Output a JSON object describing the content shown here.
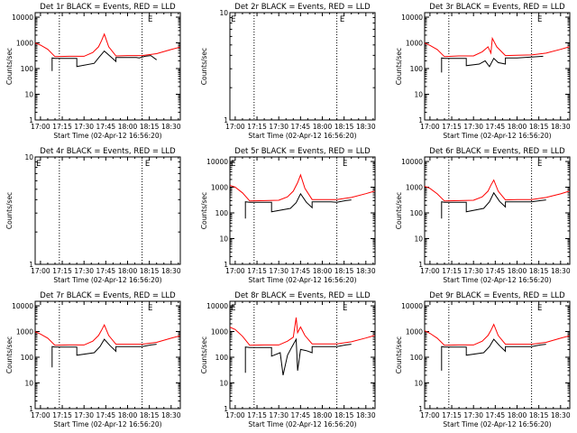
{
  "chart_data": [
    {
      "type": "line",
      "title": "Det 1r BLACK = Events, RED = LLD",
      "xlabel": "Start Time (02-Apr-12 16:56:20)",
      "ylabel": "Counts/sec",
      "x_ticklabels": [
        "17:00",
        "17:15",
        "17:30",
        "17:45",
        "18:00",
        "18:15",
        "18:30"
      ],
      "y_ticklabels": [
        "1",
        "10",
        "100",
        "1000",
        "10000"
      ],
      "xlim": [
        "16:56:20",
        "18:36:20"
      ],
      "ylim": [
        1,
        15000
      ],
      "y_scale": "log",
      "vlines": [
        "17:13",
        "18:10"
      ],
      "markers": [
        {
          "label": "E",
          "x": "18:14"
        }
      ],
      "series": [
        {
          "color": "#000000",
          "x": [
            "17:08",
            "17:08",
            "17:10",
            "17:25",
            "17:25",
            "17:37",
            "17:40",
            "17:44",
            "17:48",
            "17:52",
            "17:52",
            "18:06",
            "18:08",
            "18:12",
            "18:16",
            "18:20"
          ],
          "y": [
            80,
            260,
            250,
            250,
            120,
            160,
            260,
            480,
            300,
            190,
            270,
            270,
            260,
            300,
            320,
            220
          ]
        },
        {
          "color": "#ff0000",
          "x": [
            "16:56",
            "17:00",
            "17:05",
            "17:10",
            "17:20",
            "17:30",
            "17:36",
            "17:40",
            "17:42",
            "17:44",
            "17:47",
            "17:52",
            "18:00",
            "18:10",
            "18:20",
            "18:30",
            "18:36"
          ],
          "y": [
            1000,
            820,
            560,
            290,
            300,
            300,
            420,
            700,
            1200,
            2200,
            700,
            310,
            320,
            320,
            380,
            550,
            680
          ]
        }
      ]
    },
    {
      "type": "line",
      "title": "Det 2r BLACK = Events, RED = LLD",
      "xlabel": "Start Time (02-Apr-12 16:56:20)",
      "ylabel": "Counts/sec",
      "x_ticklabels": [
        "17:00",
        "17:15",
        "17:30",
        "17:45",
        "18:00",
        "18:15",
        "18:30"
      ],
      "y_ticklabels": [
        "1",
        "10"
      ],
      "xlim": [
        "16:56:20",
        "18:36:20"
      ],
      "ylim": [
        1,
        10
      ],
      "y_scale": "log",
      "vlines": [
        "17:13",
        "18:10"
      ],
      "markers": [
        {
          "label": "E",
          "x": "16:57"
        },
        {
          "label": "E",
          "x": "18:12"
        }
      ],
      "series": []
    },
    {
      "type": "line",
      "title": "Det 3r BLACK = Events, RED = LLD",
      "xlabel": "Start Time (02-Apr-12 16:56:20)",
      "ylabel": "Counts/sec",
      "x_ticklabels": [
        "17:00",
        "17:15",
        "17:30",
        "17:45",
        "18:00",
        "18:15",
        "18:30"
      ],
      "y_ticklabels": [
        "1",
        "10",
        "100",
        "1000",
        "10000"
      ],
      "xlim": [
        "16:56:20",
        "18:36:20"
      ],
      "ylim": [
        1,
        15000
      ],
      "y_scale": "log",
      "vlines": [
        "17:13",
        "18:10"
      ],
      "markers": [
        {
          "label": "E",
          "x": "18:14"
        }
      ],
      "series": [
        {
          "color": "#000000",
          "x": [
            "17:08",
            "17:08",
            "17:10",
            "17:25",
            "17:25",
            "17:34",
            "17:38",
            "17:41",
            "17:44",
            "17:47",
            "17:52",
            "17:52",
            "18:00",
            "18:10",
            "18:18"
          ],
          "y": [
            70,
            260,
            250,
            250,
            130,
            150,
            200,
            120,
            250,
            170,
            150,
            260,
            260,
            280,
            300
          ]
        },
        {
          "color": "#ff0000",
          "x": [
            "16:56",
            "17:00",
            "17:05",
            "17:10",
            "17:20",
            "17:30",
            "17:36",
            "17:40",
            "17:42",
            "17:43",
            "17:45",
            "17:46",
            "17:52",
            "18:00",
            "18:10",
            "18:20",
            "18:30",
            "18:36"
          ],
          "y": [
            1000,
            800,
            550,
            290,
            310,
            310,
            450,
            700,
            400,
            1500,
            900,
            700,
            320,
            330,
            340,
            400,
            560,
            700
          ]
        }
      ]
    },
    {
      "type": "line",
      "title": "Det 4r BLACK = Events, RED = LLD",
      "xlabel": "Start Time (02-Apr-12 16:56:20)",
      "ylabel": "Counts/sec",
      "x_ticklabels": [
        "17:00",
        "17:15",
        "17:30",
        "17:45",
        "18:00",
        "18:15",
        "18:30"
      ],
      "y_ticklabels": [
        "1",
        "10"
      ],
      "xlim": [
        "16:56:20",
        "18:36:20"
      ],
      "ylim": [
        1,
        10
      ],
      "y_scale": "log",
      "vlines": [
        "17:13",
        "18:10"
      ],
      "markers": [
        {
          "label": "E",
          "x": "16:57"
        },
        {
          "label": "E",
          "x": "18:12"
        }
      ],
      "series": []
    },
    {
      "type": "line",
      "title": "Det 5r BLACK = Events, RED = LLD",
      "xlabel": "Start Time (02-Apr-12 16:56:20)",
      "ylabel": "Counts/sec",
      "x_ticklabels": [
        "17:00",
        "17:15",
        "17:30",
        "17:45",
        "18:00",
        "18:15",
        "18:30"
      ],
      "y_ticklabels": [
        "1",
        "10",
        "100",
        "1000",
        "10000"
      ],
      "xlim": [
        "16:56:20",
        "18:36:20"
      ],
      "ylim": [
        1,
        15000
      ],
      "y_scale": "log",
      "vlines": [
        "17:13",
        "18:10"
      ],
      "markers": [
        {
          "label": "E",
          "x": "16:57"
        },
        {
          "label": "E",
          "x": "18:14"
        }
      ],
      "series": [
        {
          "color": "#000000",
          "x": [
            "17:07",
            "17:07",
            "17:10",
            "17:25",
            "17:25",
            "17:38",
            "17:42",
            "17:45",
            "17:49",
            "17:53",
            "17:53",
            "18:06",
            "18:10",
            "18:16",
            "18:20"
          ],
          "y": [
            60,
            270,
            260,
            260,
            110,
            150,
            250,
            550,
            260,
            160,
            270,
            270,
            260,
            300,
            320
          ]
        },
        {
          "color": "#ff0000",
          "x": [
            "16:56",
            "17:00",
            "17:05",
            "17:10",
            "17:20",
            "17:30",
            "17:36",
            "17:40",
            "17:43",
            "17:45",
            "17:48",
            "17:53",
            "18:00",
            "18:10",
            "18:20",
            "18:30",
            "18:36"
          ],
          "y": [
            1200,
            1000,
            600,
            290,
            300,
            310,
            420,
            700,
            1500,
            3000,
            900,
            330,
            330,
            330,
            400,
            560,
            700
          ]
        }
      ]
    },
    {
      "type": "line",
      "title": "Det 6r BLACK = Events, RED = LLD",
      "xlabel": "Start Time (02-Apr-12 16:56:20)",
      "ylabel": "Counts/sec",
      "x_ticklabels": [
        "17:00",
        "17:15",
        "17:30",
        "17:45",
        "18:00",
        "18:15",
        "18:30"
      ],
      "y_ticklabels": [
        "1",
        "10",
        "100",
        "1000",
        "10000"
      ],
      "xlim": [
        "16:56:20",
        "18:36:20"
      ],
      "ylim": [
        1,
        15000
      ],
      "y_scale": "log",
      "vlines": [
        "17:13",
        "18:10"
      ],
      "markers": [
        {
          "label": "E",
          "x": "18:14"
        }
      ],
      "series": [
        {
          "color": "#000000",
          "x": [
            "17:08",
            "17:08",
            "17:10",
            "17:25",
            "17:25",
            "17:37",
            "17:41",
            "17:44",
            "17:48",
            "17:52",
            "17:52",
            "18:06",
            "18:10",
            "18:16",
            "18:20"
          ],
          "y": [
            60,
            270,
            260,
            260,
            110,
            150,
            270,
            600,
            280,
            170,
            270,
            270,
            270,
            300,
            320
          ]
        },
        {
          "color": "#ff0000",
          "x": [
            "16:56",
            "17:00",
            "17:05",
            "17:10",
            "17:20",
            "17:30",
            "17:36",
            "17:40",
            "17:42",
            "17:44",
            "17:47",
            "17:52",
            "18:00",
            "18:10",
            "18:20",
            "18:30",
            "18:36"
          ],
          "y": [
            1100,
            900,
            550,
            290,
            300,
            310,
            420,
            700,
            1200,
            1900,
            700,
            320,
            330,
            330,
            400,
            550,
            700
          ]
        }
      ]
    },
    {
      "type": "line",
      "title": "Det 7r BLACK = Events, RED = LLD",
      "xlabel": "Start Time (02-Apr-12 16:56:20)",
      "ylabel": "Counts/sec",
      "x_ticklabels": [
        "17:00",
        "17:15",
        "17:30",
        "17:45",
        "18:00",
        "18:15",
        "18:30"
      ],
      "y_ticklabels": [
        "1",
        "10",
        "100",
        "1000",
        "10000"
      ],
      "xlim": [
        "16:56:20",
        "18:36:20"
      ],
      "ylim": [
        1,
        15000
      ],
      "y_scale": "log",
      "vlines": [
        "17:13",
        "18:10"
      ],
      "markers": [
        {
          "label": "E",
          "x": "18:14"
        }
      ],
      "series": [
        {
          "color": "#000000",
          "x": [
            "17:08",
            "17:08",
            "17:10",
            "17:25",
            "17:25",
            "17:37",
            "17:41",
            "17:44",
            "17:48",
            "17:52",
            "17:52",
            "18:06",
            "18:10",
            "18:16",
            "18:20"
          ],
          "y": [
            40,
            260,
            250,
            250,
            120,
            150,
            260,
            500,
            280,
            170,
            260,
            260,
            260,
            300,
            320
          ]
        },
        {
          "color": "#ff0000",
          "x": [
            "16:56",
            "17:00",
            "17:05",
            "17:10",
            "17:20",
            "17:30",
            "17:36",
            "17:40",
            "17:42",
            "17:44",
            "17:47",
            "17:52",
            "18:00",
            "18:10",
            "18:20",
            "18:30",
            "18:36"
          ],
          "y": [
            1000,
            800,
            550,
            290,
            300,
            300,
            420,
            700,
            1100,
            1800,
            700,
            320,
            320,
            320,
            380,
            550,
            680
          ]
        }
      ]
    },
    {
      "type": "line",
      "title": "Det 8r BLACK = Events, RED = LLD",
      "xlabel": "Start Time (02-Apr-12 16:56:20)",
      "ylabel": "Counts/sec",
      "x_ticklabels": [
        "17:00",
        "17:15",
        "17:30",
        "17:45",
        "18:00",
        "18:15",
        "18:30"
      ],
      "y_ticklabels": [
        "1",
        "10",
        "100",
        "1000",
        "10000"
      ],
      "xlim": [
        "16:56:20",
        "18:36:20"
      ],
      "ylim": [
        1,
        15000
      ],
      "y_scale": "log",
      "vlines": [
        "17:13",
        "18:10"
      ],
      "markers": [
        {
          "label": "E",
          "x": "16:57"
        },
        {
          "label": "E",
          "x": "18:14"
        }
      ],
      "series": [
        {
          "color": "#000000",
          "x": [
            "17:07",
            "17:07",
            "17:10",
            "17:25",
            "17:25",
            "17:31",
            "17:33",
            "17:36",
            "17:39",
            "17:42",
            "17:43",
            "17:45",
            "17:49",
            "17:53",
            "17:53",
            "18:06",
            "18:10",
            "18:16",
            "18:20"
          ],
          "y": [
            25,
            250,
            240,
            240,
            110,
            150,
            20,
            120,
            250,
            500,
            30,
            200,
            180,
            150,
            260,
            260,
            260,
            300,
            320
          ]
        },
        {
          "color": "#ff0000",
          "x": [
            "16:56",
            "17:00",
            "17:05",
            "17:10",
            "17:20",
            "17:30",
            "17:36",
            "17:40",
            "17:42",
            "17:43",
            "17:45",
            "17:48",
            "17:53",
            "18:00",
            "18:10",
            "18:20",
            "18:30",
            "18:36"
          ],
          "y": [
            1500,
            1200,
            650,
            290,
            300,
            300,
            420,
            600,
            3500,
            900,
            1500,
            700,
            330,
            330,
            330,
            400,
            560,
            700
          ]
        }
      ]
    },
    {
      "type": "line",
      "title": "Det 9r BLACK = Events, RED = LLD",
      "xlabel": "Start Time (02-Apr-12 16:56:20)",
      "ylabel": "Counts/sec",
      "x_ticklabels": [
        "17:00",
        "17:15",
        "17:30",
        "17:45",
        "18:00",
        "18:15",
        "18:30"
      ],
      "y_ticklabels": [
        "1",
        "10",
        "100",
        "1000",
        "10000"
      ],
      "xlim": [
        "16:56:20",
        "18:36:20"
      ],
      "ylim": [
        1,
        15000
      ],
      "y_scale": "log",
      "vlines": [
        "17:13",
        "18:10"
      ],
      "markers": [
        {
          "label": "E",
          "x": "18:14"
        }
      ],
      "series": [
        {
          "color": "#000000",
          "x": [
            "17:08",
            "17:08",
            "17:10",
            "17:25",
            "17:25",
            "17:37",
            "17:41",
            "17:44",
            "17:48",
            "17:52",
            "17:52",
            "18:06",
            "18:10",
            "18:16",
            "18:20"
          ],
          "y": [
            30,
            260,
            250,
            250,
            120,
            150,
            260,
            500,
            280,
            170,
            260,
            260,
            260,
            300,
            320
          ]
        },
        {
          "color": "#ff0000",
          "x": [
            "16:56",
            "17:00",
            "17:05",
            "17:10",
            "17:20",
            "17:30",
            "17:36",
            "17:40",
            "17:42",
            "17:44",
            "17:47",
            "17:52",
            "18:00",
            "18:10",
            "18:20",
            "18:30",
            "18:36"
          ],
          "y": [
            1100,
            850,
            550,
            290,
            300,
            300,
            420,
            700,
            1100,
            1900,
            700,
            320,
            320,
            320,
            380,
            550,
            680
          ]
        }
      ]
    }
  ]
}
